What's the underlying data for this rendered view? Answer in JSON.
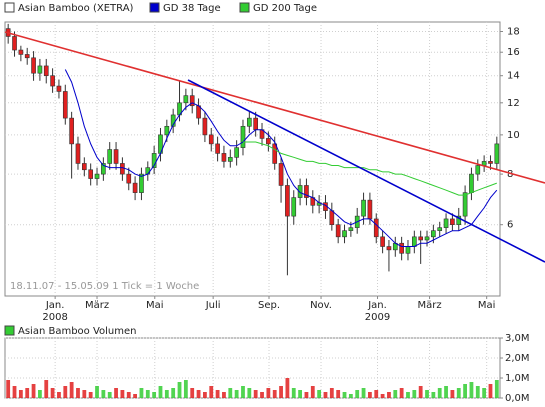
{
  "chart_data": [
    {
      "type": "candlestick",
      "name": "Asian Bamboo (XETRA)",
      "color": "#ffffff",
      "up_color": "#33cc33",
      "down_color": "#e02020",
      "open": [
        18.3,
        17.5,
        16.2,
        15.8,
        15.5,
        14.2,
        14.8,
        14.0,
        13.2,
        12.8,
        11.0,
        9.5,
        8.5,
        8.2,
        7.8,
        8.0,
        8.5,
        9.2,
        8.5,
        8.0,
        7.6,
        7.2,
        8.0,
        8.3,
        9.0,
        10.0,
        10.5,
        11.2,
        12.0,
        12.5,
        11.8,
        11.0,
        10.0,
        9.5,
        9.0,
        8.6,
        8.8,
        9.3,
        10.5,
        11.0,
        10.3,
        9.8,
        9.5,
        8.5,
        7.5,
        6.3,
        7.0,
        7.5,
        7.0,
        6.7,
        6.8,
        6.5,
        6.0,
        5.6,
        5.8,
        5.9,
        6.3,
        6.9,
        6.2,
        5.6,
        5.3,
        5.2,
        5.4,
        5.1,
        5.3,
        5.6,
        5.5,
        5.6,
        5.8,
        5.9,
        6.2,
        6.0,
        6.3,
        7.2,
        8.0,
        8.4,
        8.6,
        8.5
      ],
      "high": [
        18.8,
        18.0,
        16.6,
        16.4,
        16.1,
        15.4,
        15.4,
        14.6,
        13.7,
        13.3,
        11.4,
        9.9,
        8.8,
        8.5,
        8.3,
        8.8,
        9.6,
        9.6,
        8.8,
        8.3,
        7.9,
        8.3,
        8.6,
        9.4,
        10.4,
        10.9,
        11.6,
        13.6,
        13.0,
        13.0,
        12.3,
        11.4,
        10.4,
        9.9,
        9.4,
        9.2,
        9.7,
        10.9,
        11.4,
        11.4,
        10.7,
        10.2,
        9.9,
        8.8,
        7.8,
        7.3,
        7.8,
        7.8,
        7.3,
        7.1,
        7.1,
        6.8,
        6.2,
        6.0,
        6.1,
        6.6,
        7.2,
        7.2,
        6.4,
        5.8,
        5.5,
        5.6,
        5.6,
        5.5,
        5.8,
        5.8,
        5.8,
        6.0,
        6.1,
        6.4,
        6.4,
        6.6,
        7.5,
        8.3,
        8.7,
        8.9,
        8.9,
        9.9
      ],
      "low": [
        16.8,
        15.6,
        15.2,
        14.9,
        13.6,
        13.6,
        13.4,
        12.7,
        12.3,
        10.6,
        7.8,
        8.2,
        7.9,
        7.5,
        7.5,
        7.7,
        8.2,
        8.2,
        7.7,
        7.3,
        6.9,
        6.9,
        7.7,
        8.0,
        8.6,
        9.6,
        10.1,
        10.8,
        11.5,
        11.3,
        10.6,
        9.6,
        9.1,
        8.6,
        8.3,
        8.3,
        8.4,
        8.9,
        10.1,
        9.9,
        9.4,
        9.1,
        8.2,
        6.8,
        4.5,
        6.0,
        6.7,
        6.7,
        6.4,
        6.4,
        6.2,
        5.8,
        5.4,
        5.4,
        5.6,
        5.7,
        6.0,
        6.0,
        5.4,
        5.1,
        4.6,
        5.0,
        4.9,
        4.9,
        5.1,
        4.8,
        5.3,
        5.4,
        5.6,
        5.7,
        5.8,
        5.8,
        6.0,
        6.9,
        7.7,
        8.1,
        8.2,
        8.2
      ],
      "close": [
        17.5,
        16.2,
        15.8,
        15.5,
        14.2,
        14.8,
        14.0,
        13.2,
        12.8,
        11.0,
        9.5,
        8.5,
        8.2,
        7.8,
        8.0,
        8.5,
        9.2,
        8.5,
        8.0,
        7.6,
        7.2,
        8.0,
        8.3,
        9.0,
        10.0,
        10.5,
        11.2,
        12.0,
        12.5,
        11.8,
        11.0,
        10.0,
        9.5,
        9.0,
        8.6,
        8.8,
        9.3,
        10.5,
        11.0,
        10.3,
        9.8,
        9.5,
        8.5,
        7.5,
        6.3,
        7.0,
        7.5,
        7.0,
        6.7,
        6.8,
        6.5,
        6.0,
        5.6,
        5.8,
        5.9,
        6.3,
        6.9,
        6.2,
        5.6,
        5.3,
        5.2,
        5.4,
        5.1,
        5.3,
        5.6,
        5.5,
        5.6,
        5.8,
        5.9,
        6.2,
        6.0,
        6.3,
        7.2,
        8.0,
        8.4,
        8.6,
        8.5,
        9.5
      ],
      "series": [
        {
          "name": "GD 38 Tage",
          "color": "#0000cc",
          "values": [
            null,
            null,
            null,
            null,
            null,
            null,
            null,
            null,
            null,
            14.5,
            13.5,
            12.0,
            10.5,
            9.5,
            8.8,
            8.4,
            8.3,
            8.3,
            8.3,
            8.2,
            8.0,
            7.9,
            8.0,
            8.4,
            9.0,
            9.8,
            10.6,
            11.2,
            11.7,
            12.0,
            11.8,
            11.4,
            10.8,
            10.2,
            9.7,
            9.4,
            9.4,
            9.6,
            10.0,
            10.3,
            10.3,
            10.0,
            9.6,
            8.8,
            8.0,
            7.5,
            7.2,
            7.1,
            7.0,
            6.8,
            6.7,
            6.5,
            6.3,
            6.1,
            6.0,
            6.1,
            6.2,
            6.2,
            6.0,
            5.8,
            5.6,
            5.4,
            5.3,
            5.3,
            5.3,
            5.4,
            5.4,
            5.5,
            5.6,
            5.7,
            5.8,
            5.8,
            5.9,
            6.0,
            6.3,
            6.6,
            7.0,
            7.3
          ]
        },
        {
          "name": "GD 200 Tage",
          "color": "#33cc33",
          "values": [
            null,
            null,
            null,
            null,
            null,
            null,
            null,
            null,
            null,
            null,
            null,
            null,
            null,
            null,
            null,
            null,
            null,
            null,
            null,
            null,
            null,
            null,
            null,
            null,
            null,
            null,
            null,
            null,
            null,
            null,
            null,
            null,
            null,
            null,
            null,
            null,
            null,
            9.6,
            9.6,
            9.6,
            9.5,
            9.4,
            9.2,
            9.0,
            8.9,
            8.8,
            8.7,
            8.6,
            8.6,
            8.5,
            8.5,
            8.4,
            8.4,
            8.3,
            8.3,
            8.3,
            8.3,
            8.2,
            8.2,
            8.1,
            8.1,
            8.0,
            8.0,
            7.9,
            7.8,
            7.7,
            7.6,
            7.5,
            7.4,
            7.3,
            7.2,
            7.1,
            7.1,
            7.2,
            7.3,
            7.4,
            7.5,
            7.6
          ]
        }
      ],
      "ylim": [
        4,
        19
      ],
      "log_scale": true,
      "yticks": [
        6,
        8,
        10,
        12,
        14,
        16,
        18
      ],
      "xlim": [
        -0.5,
        77.5
      ],
      "xticks": [
        {
          "value": 7.4,
          "label": "Jan."
        },
        {
          "value": 14.0,
          "label": "März"
        },
        {
          "value": 23.1,
          "label": "Mai"
        },
        {
          "value": 32.3,
          "label": "Juli"
        },
        {
          "value": 41.1,
          "label": "Sep."
        },
        {
          "value": 49.3,
          "label": "Nov."
        },
        {
          "value": 58.2,
          "label": "Jan."
        },
        {
          "value": 66.4,
          "label": "März"
        },
        {
          "value": 75.4,
          "label": "Mai"
        }
      ],
      "x_year_labels": [
        {
          "value": 7.4,
          "label": "2008"
        },
        {
          "value": 58.2,
          "label": "2009"
        }
      ],
      "annotation": "18.11.07 - 15.05.09   1 Tick = 1 Woche",
      "grid": true
    },
    {
      "type": "bar",
      "name": "Asian Bamboo Volumen",
      "color": "#33cc33",
      "values": [
        0.9,
        0.6,
        0.4,
        0.5,
        0.7,
        0.4,
        0.9,
        0.5,
        0.3,
        0.6,
        0.8,
        0.5,
        0.4,
        0.3,
        0.6,
        0.4,
        0.3,
        0.5,
        0.4,
        0.3,
        0.2,
        0.5,
        0.4,
        0.3,
        0.6,
        0.4,
        0.5,
        0.8,
        0.9,
        0.5,
        0.4,
        0.3,
        0.6,
        0.4,
        0.3,
        0.5,
        0.4,
        0.6,
        0.5,
        0.4,
        0.3,
        0.5,
        0.4,
        0.6,
        1.0,
        0.5,
        0.4,
        0.3,
        0.6,
        0.4,
        0.3,
        0.5,
        0.4,
        0.3,
        0.2,
        0.4,
        0.5,
        0.3,
        0.4,
        0.2,
        0.3,
        0.4,
        0.5,
        0.3,
        0.4,
        0.6,
        0.4,
        0.3,
        0.5,
        0.6,
        0.4,
        0.5,
        0.7,
        0.8,
        0.6,
        0.5,
        0.7,
        0.9
      ],
      "ylim": [
        0,
        3
      ],
      "yticks": [
        {
          "value": 0,
          "label": "0,0M"
        },
        {
          "value": 1,
          "label": "1,0M"
        },
        {
          "value": 2,
          "label": "2,0M"
        },
        {
          "value": 3,
          "label": "3,0M"
        }
      ],
      "grid": true
    }
  ]
}
